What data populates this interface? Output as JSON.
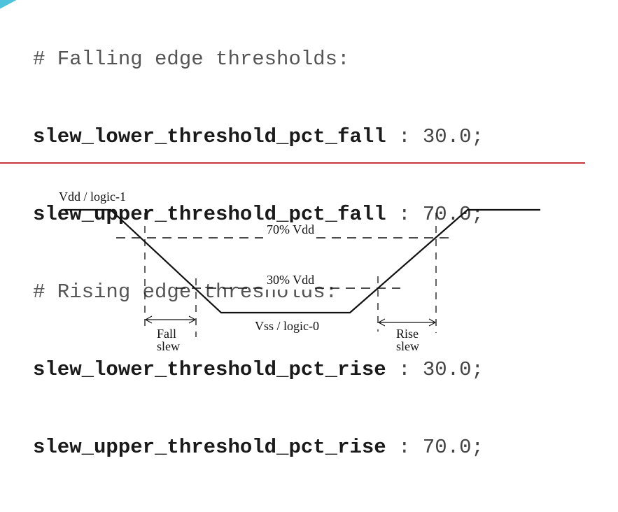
{
  "code": {
    "falling_comment": "# Falling edge thresholds:",
    "lines": [
      {
        "name": "slew_lower_threshold_pct_fall",
        "sep": " : ",
        "value": "30.0;"
      },
      {
        "name": "slew_upper_threshold_pct_fall",
        "sep": " : ",
        "value": "70.0;"
      },
      {
        "name": "slew_lower_threshold_pct_rise",
        "sep": " : ",
        "value": "30.0;"
      },
      {
        "name": "slew_upper_threshold_pct_rise",
        "sep": " : ",
        "value": "70.0;"
      }
    ],
    "rising_comment": "# Rising edge thresholds:"
  },
  "diagram": {
    "vdd_label": "Vdd / logic-1",
    "vss_label": "Vss / logic-0",
    "upper_threshold_label": "70% Vdd",
    "lower_threshold_label": "30% Vdd",
    "fall_slew_label_1": "Fall",
    "fall_slew_label_2": "slew",
    "rise_slew_label_1": "Rise",
    "rise_slew_label_2": "slew"
  },
  "colors": {
    "divider": "#c8343c",
    "accent": "#4fc3dc",
    "code_bold": "#1a1a1a",
    "code_text": "#444444"
  }
}
